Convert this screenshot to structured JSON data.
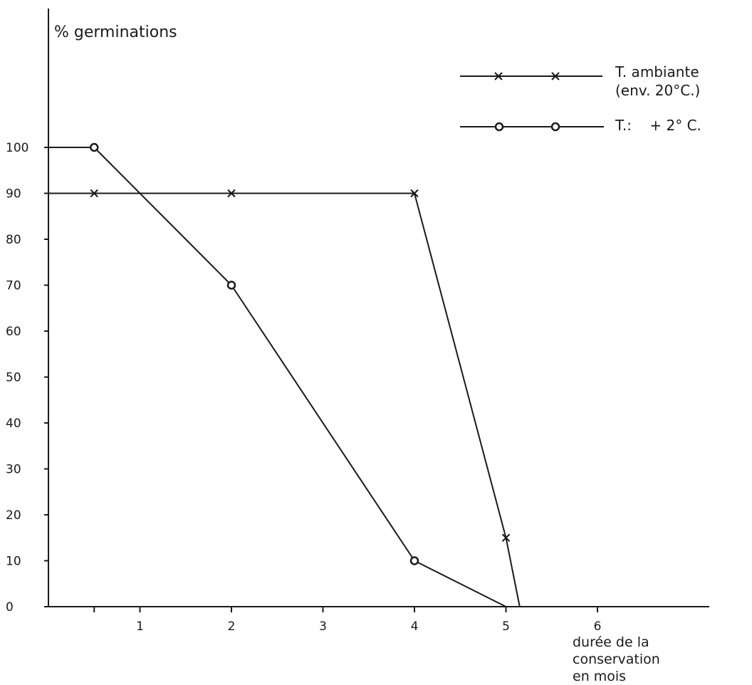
{
  "chart_data": {
    "type": "line",
    "ylabel": "% germinations",
    "xlabel_lines": [
      "durée de la",
      "conservation",
      "en mois"
    ],
    "ylim": [
      0,
      100
    ],
    "y_ticks": [
      "0",
      "10",
      "20",
      "30",
      "40",
      "50",
      "60",
      "70",
      "80",
      "90",
      "100"
    ],
    "x_ticks": [
      "1",
      "2",
      "3",
      "4",
      "5",
      "6"
    ],
    "grid": false,
    "legend_position": "top-right",
    "series": [
      {
        "name": "T. ambiante (env. 20°C.)",
        "legend_lines": [
          "T. ambiante",
          "(env.  20°C.)"
        ],
        "marker": "x",
        "points": [
          [
            0,
            90
          ],
          [
            0.5,
            90
          ],
          [
            2,
            90
          ],
          [
            4,
            90
          ],
          [
            5,
            15
          ],
          [
            5.15,
            0
          ]
        ],
        "marked": [
          false,
          true,
          true,
          true,
          true,
          false
        ]
      },
      {
        "name": "T.: + 2° C.",
        "legend_lines": [
          "T.:    + 2° C."
        ],
        "marker": "o",
        "points": [
          [
            0,
            100
          ],
          [
            0.5,
            100
          ],
          [
            2,
            70
          ],
          [
            4,
            10
          ],
          [
            5,
            0
          ]
        ],
        "marked": [
          false,
          true,
          true,
          true,
          false
        ]
      }
    ]
  }
}
